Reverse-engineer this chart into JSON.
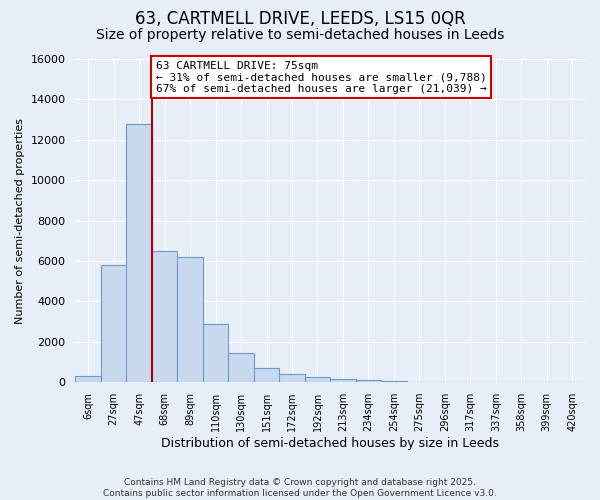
{
  "title1": "63, CARTMELL DRIVE, LEEDS, LS15 0QR",
  "title2": "Size of property relative to semi-detached houses in Leeds",
  "xlabel": "Distribution of semi-detached houses by size in Leeds",
  "ylabel": "Number of semi-detached properties",
  "footer": "Contains HM Land Registry data © Crown copyright and database right 2025.\nContains public sector information licensed under the Open Government Licence v3.0.",
  "property_label": "63 CARTMELL DRIVE: 75sqm",
  "smaller_pct": 31,
  "smaller_count": 9788,
  "larger_pct": 67,
  "larger_count": 21039,
  "bin_labels": [
    "6sqm",
    "27sqm",
    "47sqm",
    "68sqm",
    "89sqm",
    "110sqm",
    "130sqm",
    "151sqm",
    "172sqm",
    "192sqm",
    "213sqm",
    "234sqm",
    "254sqm",
    "275sqm",
    "296sqm",
    "317sqm",
    "337sqm",
    "358sqm",
    "399sqm",
    "420sqm"
  ],
  "bar_heights": [
    300,
    5800,
    12800,
    6500,
    6200,
    2900,
    1450,
    700,
    420,
    280,
    180,
    100,
    50,
    20,
    15,
    10,
    10,
    10,
    10,
    10
  ],
  "bar_color": "#c8d9ef",
  "bar_edge_color": "#6699cc",
  "vline_color": "#aa0000",
  "vline_x_index": 2.5,
  "annotation_box_color": "#cc0000",
  "ylim": [
    0,
    16000
  ],
  "yticks": [
    0,
    2000,
    4000,
    6000,
    8000,
    10000,
    12000,
    14000,
    16000
  ],
  "background_color": "#e8eef8",
  "grid_color": "#ffffff",
  "title1_fontsize": 12,
  "title2_fontsize": 10,
  "annot_fontsize": 8,
  "xlabel_fontsize": 9,
  "ylabel_fontsize": 8
}
